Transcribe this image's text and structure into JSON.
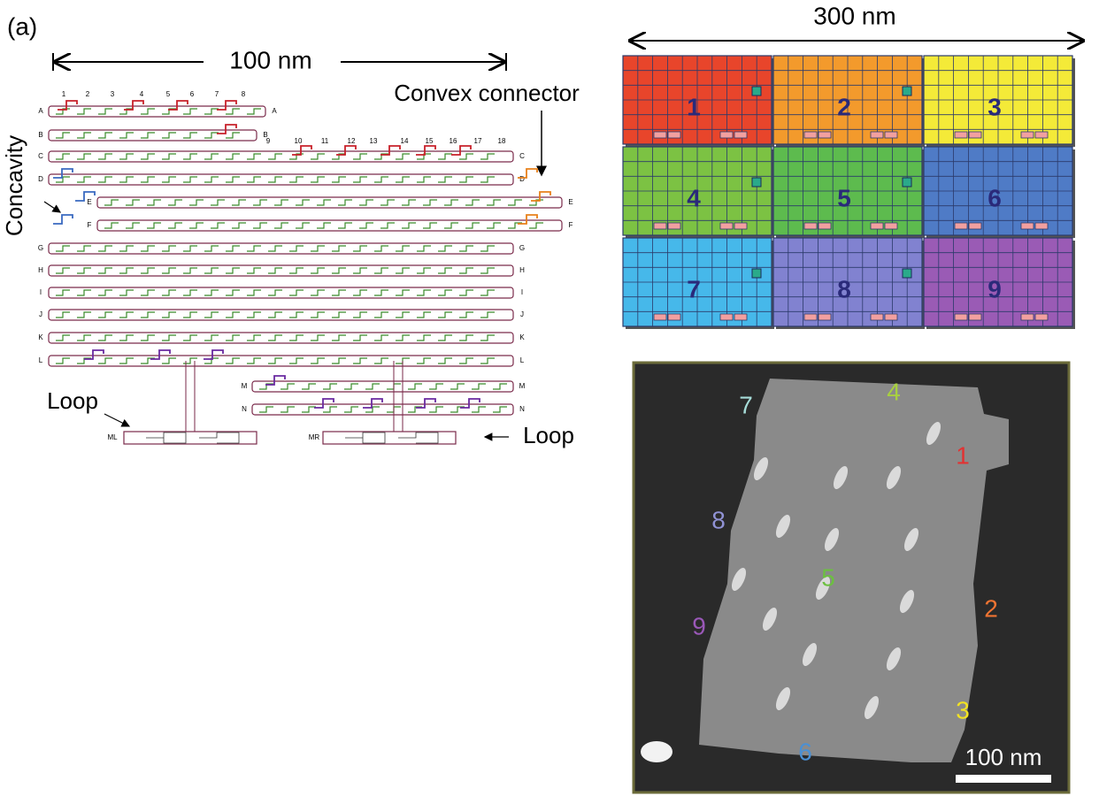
{
  "panel_label": "(a)",
  "schematic": {
    "scale_label": "100 nm",
    "convex_connector": "Convex connector",
    "concavity": "Concavity",
    "loop_left": "Loop",
    "loop_right": "Loop",
    "columns": [
      "1",
      "2",
      "3",
      "4",
      "5",
      "6",
      "7",
      "8",
      "9",
      "10",
      "11",
      "12",
      "13",
      "14",
      "15",
      "16",
      "17",
      "18"
    ],
    "rows": [
      "A",
      "B",
      "C",
      "D",
      "E",
      "F",
      "G",
      "H",
      "I",
      "J",
      "K",
      "L",
      "M",
      "N"
    ],
    "loop_left_id": "ML",
    "loop_right_id": "MR"
  },
  "tile_diagram": {
    "scale_label": "300 nm",
    "tiles": [
      {
        "label": "1",
        "color": "#e8452b"
      },
      {
        "label": "2",
        "color": "#f39a2c"
      },
      {
        "label": "3",
        "color": "#f4ea38"
      },
      {
        "label": "4",
        "color": "#7cc243"
      },
      {
        "label": "5",
        "color": "#5dbb4e"
      },
      {
        "label": "6",
        "color": "#4f7bc6"
      },
      {
        "label": "7",
        "color": "#46b8ea"
      },
      {
        "label": "8",
        "color": "#8182d0"
      },
      {
        "label": "9",
        "color": "#9a5bb5"
      }
    ]
  },
  "afm": {
    "labels": [
      {
        "text": "7",
        "color": "#a6dcd8"
      },
      {
        "text": "4",
        "color": "#a8d040"
      },
      {
        "text": "1",
        "color": "#e23232"
      },
      {
        "text": "8",
        "color": "#9092d4"
      },
      {
        "text": "5",
        "color": "#6cc040"
      },
      {
        "text": "2",
        "color": "#f07432"
      },
      {
        "text": "9",
        "color": "#9a58b8"
      },
      {
        "text": "3",
        "color": "#f2e222"
      },
      {
        "text": "6",
        "color": "#4a90d4"
      }
    ],
    "scale_label": "100 nm"
  }
}
